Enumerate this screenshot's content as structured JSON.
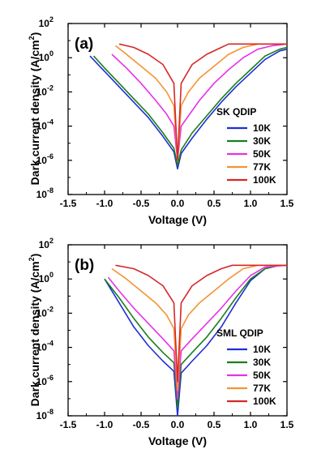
{
  "colors": {
    "10K": "#1f2fd6",
    "30K": "#1a7f1a",
    "50K": "#e632e6",
    "77K": "#f59332",
    "100K": "#d62828"
  },
  "chart_data": [
    {
      "type": "line",
      "panel_label": "(a)",
      "legend_title": "SK QDIP",
      "legend_position": "right",
      "xlabel": "Voltage (V)",
      "ylabel": "Dark current density (A/cm",
      "ylabel_sup": "2",
      "ylabel_end": ")",
      "yscale": "log",
      "xlim": [
        -1.5,
        1.5
      ],
      "ylim_exp": [
        -8,
        2
      ],
      "xticks": [
        -1.5,
        -1.0,
        -0.5,
        0.0,
        0.5,
        1.0,
        1.5
      ],
      "xtick_labels": [
        "-1.5",
        "-1.0",
        "-0.5",
        "0.0",
        "0.5",
        "1.0",
        "1.5"
      ],
      "ytick_exp": [
        2,
        0,
        -2,
        -4,
        -6,
        -8
      ],
      "ytick_base": "10",
      "series": [
        {
          "name": "10K",
          "color_key": "10K",
          "x": [
            -1.2,
            -1.0,
            -0.8,
            -0.6,
            -0.4,
            -0.2,
            -0.05,
            0.0,
            0.05,
            0.2,
            0.4,
            0.6,
            0.8,
            1.0,
            1.2,
            1.4,
            1.5
          ],
          "y_exp": [
            0.1,
            -0.8,
            -1.7,
            -2.6,
            -3.5,
            -4.6,
            -5.5,
            -6.5,
            -5.6,
            -4.7,
            -3.6,
            -2.6,
            -1.7,
            -0.9,
            -0.1,
            0.4,
            0.5
          ]
        },
        {
          "name": "30K",
          "color_key": "30K",
          "x": [
            -1.15,
            -1.0,
            -0.8,
            -0.6,
            -0.4,
            -0.2,
            -0.05,
            0.0,
            0.05,
            0.2,
            0.4,
            0.6,
            0.8,
            1.0,
            1.2,
            1.4,
            1.5
          ],
          "y_exp": [
            0.1,
            -0.6,
            -1.5,
            -2.4,
            -3.3,
            -4.4,
            -5.3,
            -6.3,
            -5.4,
            -4.4,
            -3.4,
            -2.4,
            -1.5,
            -0.7,
            0.1,
            0.5,
            0.6
          ]
        },
        {
          "name": "50K",
          "color_key": "50K",
          "x": [
            -0.9,
            -0.7,
            -0.5,
            -0.3,
            -0.15,
            -0.05,
            0.0,
            0.05,
            0.15,
            0.3,
            0.5,
            0.7,
            0.9,
            1.1,
            1.3,
            1.5
          ],
          "y_exp": [
            0.2,
            -0.6,
            -1.5,
            -2.5,
            -3.3,
            -4.0,
            -6.0,
            -4.0,
            -3.4,
            -2.5,
            -1.5,
            -0.7,
            0.0,
            0.5,
            0.7,
            0.8
          ]
        },
        {
          "name": "77K",
          "color_key": "77K",
          "x": [
            -0.85,
            -0.7,
            -0.5,
            -0.3,
            -0.15,
            -0.05,
            0.0,
            0.05,
            0.15,
            0.3,
            0.5,
            0.7,
            0.9,
            1.1,
            1.3,
            1.5
          ],
          "y_exp": [
            0.7,
            0.2,
            -0.5,
            -1.2,
            -2.0,
            -2.8,
            -6.0,
            -2.8,
            -2.0,
            -1.2,
            -0.5,
            0.2,
            0.6,
            0.8,
            0.8,
            0.8
          ]
        },
        {
          "name": "100K",
          "color_key": "100K",
          "x": [
            -0.8,
            -0.6,
            -0.4,
            -0.2,
            -0.05,
            0.0,
            0.05,
            0.2,
            0.4,
            0.6,
            0.7,
            0.9,
            1.1,
            1.3,
            1.5
          ],
          "y_exp": [
            0.8,
            0.6,
            0.2,
            -0.4,
            -1.5,
            -6.0,
            -1.5,
            -0.4,
            0.2,
            0.6,
            0.8,
            0.8,
            0.8,
            0.8,
            0.8
          ]
        }
      ]
    },
    {
      "type": "line",
      "panel_label": "(b)",
      "legend_title": "SML QDIP",
      "legend_position": "right",
      "xlabel": "Voltage (V)",
      "ylabel": "Dark current density (A/cm",
      "ylabel_sup": "2",
      "ylabel_end": ")",
      "yscale": "log",
      "xlim": [
        -1.5,
        1.5
      ],
      "ylim_exp": [
        -8,
        2
      ],
      "xticks": [
        -1.5,
        -1.0,
        -0.5,
        0.0,
        0.5,
        1.0,
        1.5
      ],
      "xtick_labels": [
        "-1.5",
        "-1.0",
        "-0.5",
        "0.0",
        "0.5",
        "1.0",
        "1.5"
      ],
      "ytick_exp": [
        2,
        0,
        -2,
        -4,
        -6,
        -8
      ],
      "ytick_base": "10",
      "series": [
        {
          "name": "10K",
          "color_key": "10K",
          "x": [
            -1.0,
            -0.8,
            -0.6,
            -0.4,
            -0.2,
            -0.05,
            0.0,
            0.05,
            0.2,
            0.4,
            0.6,
            0.8,
            1.0,
            1.2,
            1.4,
            1.5
          ],
          "y_exp": [
            0.0,
            -1.4,
            -2.8,
            -3.9,
            -4.8,
            -5.4,
            -8.0,
            -5.5,
            -4.8,
            -3.9,
            -2.8,
            -1.4,
            -0.1,
            0.6,
            0.8,
            0.8
          ]
        },
        {
          "name": "30K",
          "color_key": "30K",
          "x": [
            -1.0,
            -0.8,
            -0.6,
            -0.4,
            -0.2,
            -0.05,
            0.0,
            0.05,
            0.2,
            0.4,
            0.6,
            0.8,
            1.0,
            1.2,
            1.4,
            1.5
          ],
          "y_exp": [
            0.0,
            -1.1,
            -2.3,
            -3.4,
            -4.3,
            -4.9,
            -7.5,
            -5.0,
            -4.3,
            -3.4,
            -2.3,
            -1.1,
            0.0,
            0.6,
            0.8,
            0.8
          ]
        },
        {
          "name": "50K",
          "color_key": "50K",
          "x": [
            -0.95,
            -0.8,
            -0.6,
            -0.4,
            -0.2,
            -0.05,
            0.0,
            0.05,
            0.2,
            0.4,
            0.6,
            0.8,
            1.0,
            1.2,
            1.5
          ],
          "y_exp": [
            0.1,
            -0.7,
            -1.7,
            -2.6,
            -3.5,
            -4.2,
            -7.0,
            -4.2,
            -3.5,
            -2.6,
            -1.7,
            -0.7,
            0.2,
            0.7,
            0.8
          ]
        },
        {
          "name": "77K",
          "color_key": "77K",
          "x": [
            -0.9,
            -0.7,
            -0.5,
            -0.3,
            -0.15,
            -0.05,
            0.0,
            0.05,
            0.15,
            0.3,
            0.5,
            0.7,
            0.9,
            1.1,
            1.5
          ],
          "y_exp": [
            0.6,
            0.0,
            -0.7,
            -1.4,
            -2.1,
            -2.9,
            -6.5,
            -2.9,
            -2.1,
            -1.4,
            -0.7,
            0.0,
            0.6,
            0.8,
            0.8
          ]
        },
        {
          "name": "100K",
          "color_key": "100K",
          "x": [
            -0.85,
            -0.6,
            -0.4,
            -0.2,
            -0.05,
            0.0,
            0.05,
            0.2,
            0.4,
            0.6,
            0.75,
            1.0,
            1.5
          ],
          "y_exp": [
            0.8,
            0.6,
            0.2,
            -0.4,
            -1.4,
            -6.0,
            -1.4,
            -0.4,
            0.2,
            0.6,
            0.8,
            0.8,
            0.8
          ]
        }
      ]
    }
  ]
}
